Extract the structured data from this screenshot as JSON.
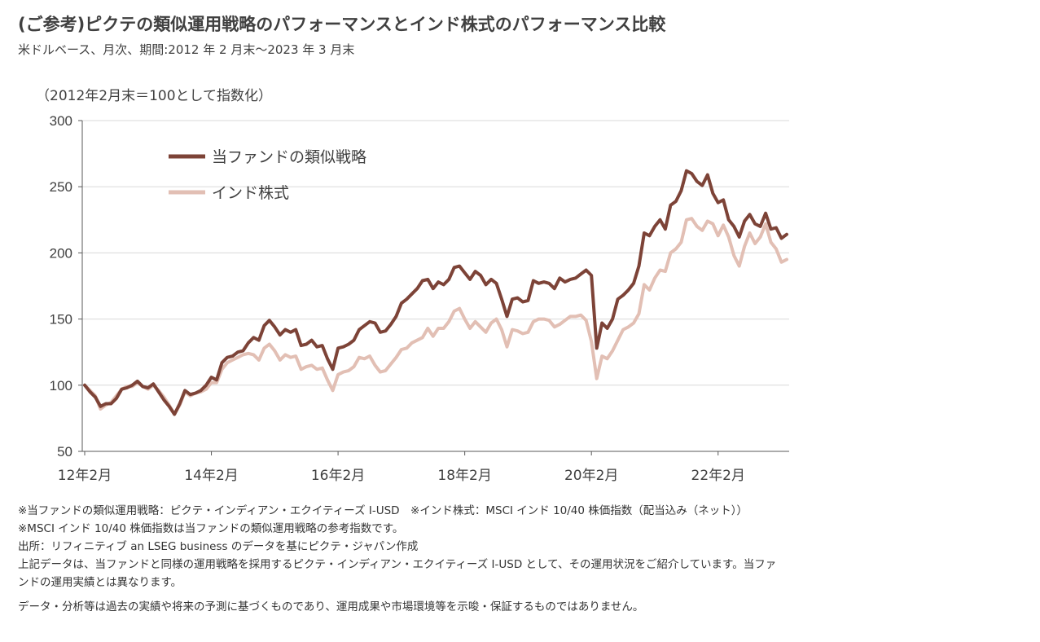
{
  "header": {
    "title": "(ご参考)ピクテの類似運用戦略のパフォーマンスとインド株式のパフォーマンス比較",
    "subtitle": "米ドルベース、月次、期間:2012 年 2 月末～2023 年 3 月末",
    "unit_label": "（2012年2月末＝100として指数化）"
  },
  "colors": {
    "fund": "#7d4337",
    "india": "#e2bfb4",
    "grid": "#d9d9d9",
    "axis": "#595959"
  },
  "chart_data": {
    "type": "line",
    "title": "(ご参考)ピクテの類似運用戦略のパフォーマンスとインド株式のパフォーマンス比較",
    "subtitle": "米ドルベース、月次、期間:2012 年 2 月末～2023 年 3 月末",
    "ylabel": "（2012年2月末＝100として指数化）",
    "xlabel": "",
    "x_range": [
      "2012-02",
      "2023-03"
    ],
    "ylim": [
      50,
      300
    ],
    "y_ticks": [
      50,
      100,
      150,
      200,
      250,
      300
    ],
    "x_tick_labels": [
      "12年2月",
      "14年2月",
      "16年2月",
      "18年2月",
      "20年2月",
      "22年2月"
    ],
    "grid": "horizontal",
    "legend_position": "top-left",
    "series": [
      {
        "name": "当ファンドの類似戦略",
        "color": "#7d4337",
        "values": [
          100,
          95,
          91,
          84,
          86,
          86,
          90,
          97,
          98,
          100,
          103,
          99,
          98,
          101,
          95,
          89,
          84,
          78,
          86,
          96,
          93,
          94,
          96,
          100,
          106,
          104,
          117,
          121,
          122,
          125,
          126,
          132,
          136,
          134,
          145,
          149,
          144,
          138,
          142,
          140,
          142,
          130,
          131,
          134,
          129,
          130,
          120,
          112,
          128,
          129,
          131,
          134,
          142,
          145,
          148,
          147,
          140,
          141,
          146,
          152,
          162,
          165,
          169,
          173,
          179,
          180,
          173,
          178,
          176,
          180,
          189,
          190,
          185,
          180,
          186,
          183,
          176,
          180,
          177,
          165,
          152,
          165,
          166,
          163,
          164,
          179,
          177,
          178,
          177,
          173,
          181,
          178,
          180,
          181,
          184,
          187,
          183,
          128,
          147,
          143,
          150,
          165,
          168,
          172,
          177,
          190,
          215,
          213,
          220,
          225,
          218,
          236,
          239,
          247,
          262,
          260,
          254,
          251,
          259,
          245,
          238,
          240,
          225,
          220,
          212,
          224,
          229,
          222,
          220,
          230,
          218,
          219,
          211,
          214
        ]
      },
      {
        "name": "インド株式",
        "color": "#e2bfb4",
        "values": [
          100,
          96,
          92,
          82,
          85,
          87,
          92,
          97,
          99,
          99,
          102,
          99,
          97,
          100,
          96,
          91,
          85,
          78,
          85,
          95,
          92,
          94,
          95,
          97,
          102,
          102,
          112,
          117,
          119,
          121,
          123,
          124,
          123,
          119,
          128,
          131,
          126,
          119,
          123,
          121,
          122,
          112,
          114,
          115,
          112,
          113,
          104,
          96,
          108,
          110,
          111,
          114,
          121,
          120,
          122,
          115,
          110,
          111,
          116,
          121,
          127,
          128,
          132,
          134,
          136,
          143,
          137,
          143,
          143,
          148,
          156,
          158,
          150,
          143,
          148,
          144,
          140,
          147,
          150,
          142,
          129,
          142,
          141,
          139,
          140,
          148,
          150,
          150,
          149,
          144,
          146,
          149,
          152,
          152,
          153,
          149,
          133,
          105,
          122,
          120,
          126,
          134,
          142,
          144,
          147,
          154,
          176,
          172,
          181,
          187,
          186,
          200,
          203,
          208,
          225,
          226,
          220,
          217,
          224,
          222,
          213,
          221,
          212,
          198,
          190,
          205,
          215,
          207,
          212,
          222,
          208,
          203,
          193,
          195
        ]
      }
    ]
  },
  "notes": [
    "※当ファンドの類似運用戦略：ピクテ・インディアン・エクイティーズ I-USD　※インド株式：MSCI インド 10/40 株価指数（配当込み（ネット））",
    "※MSCI インド 10/40 株価指数は当ファンドの類似運用戦略の参考指数です。",
    "出所：リフィニティブ an LSEG business のデータを基にピクテ・ジャパン作成",
    "上記データは、当ファンドと同様の運用戦略を採用するピクテ・インディアン・エクイティーズ I-USD として、その運用状況をご紹介しています。当ファ",
    "ンドの運用実績とは異なります。",
    "データ・分析等は過去の実績や将来の予測に基づくものであり、運用成果や市場環境等を示唆・保証するものではありません。"
  ]
}
